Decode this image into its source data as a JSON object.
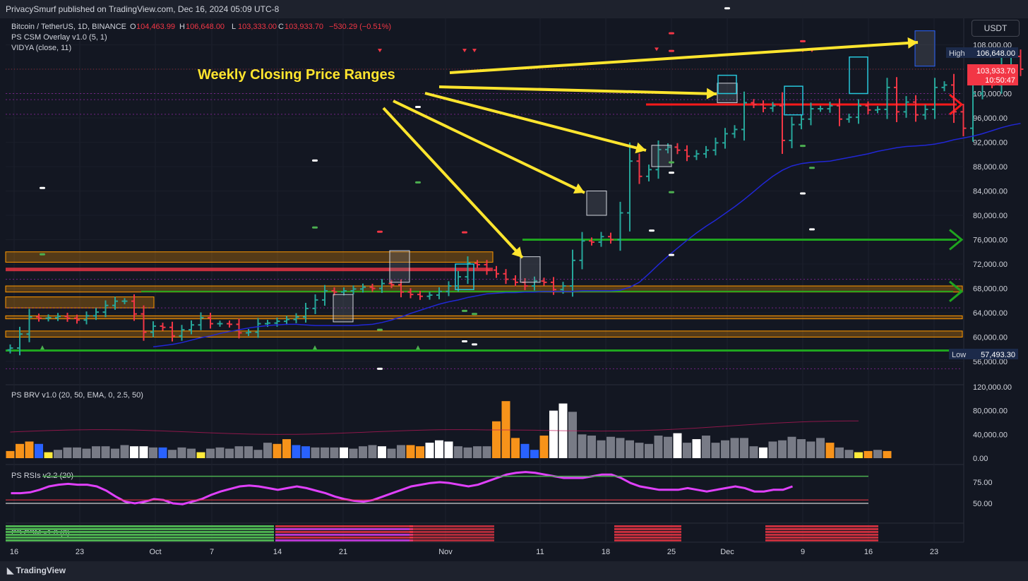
{
  "header": {
    "text": "PrivacySmurf published on TradingView.com, Dec 16, 2024 05:09 UTC-8"
  },
  "legend": {
    "symbol": "Bitcoin / TetherUS, 1D, BINANCE",
    "o_label": "O",
    "o": "104,463.99",
    "h_label": "H",
    "h": "106,648.00",
    "l_label": "L",
    "l": "103,333.00",
    "c_label": "C",
    "c": "103,933.70",
    "chg": "−530.29 (−0.51%)",
    "ind1": "PS CSM Overlay v1.0 (5, 1)",
    "ind2": "VIDYA (close, 11)"
  },
  "currency_button": "USDT",
  "annotation": "Weekly Closing Price Ranges",
  "tags": {
    "high_label": "High",
    "high_value": "106,648.00",
    "last_price": "103,933.70",
    "countdown": "10:50:47",
    "low_label": "Low",
    "low_value": "57,493.30"
  },
  "panes": {
    "brv": "PS BRV v1.0 (20, 50, EMA, 0, 2.5, 50)",
    "rsi": "PS RSIs v2.2 (20)",
    "csm": "PS CSM v1.0 (6)"
  },
  "footer": {
    "brand": "TradingView"
  },
  "colors": {
    "up": "#26a69a",
    "down": "#f23645",
    "vidya": "#2127d6",
    "rsi": "#e040fb",
    "annotation": "#ffe52e",
    "background": "#131722"
  },
  "chart_data": [
    {
      "type": "line",
      "title": "Bitcoin / TetherUS, 1D, BINANCE",
      "x_ticks": [
        "16",
        "23",
        "Oct",
        "7",
        "14",
        "21",
        "Nov",
        "11",
        "18",
        "25",
        "Dec",
        "9",
        "16",
        "23"
      ],
      "y_ticks": [
        "56,000.00",
        "60,000.00",
        "64,000.00",
        "68,000.00",
        "72,000.00",
        "76,000.00",
        "80,000.00",
        "84,000.00",
        "88,000.00",
        "92,000.00",
        "96,000.00",
        "100,000.00",
        "104,000.00",
        "108,000.00"
      ],
      "ylim": [
        54300,
        110400
      ],
      "series": [
        {
          "name": "VIDYA (close, 11)",
          "values": [
            58400,
            58600,
            58800,
            59100,
            59500,
            59900,
            60200,
            60600,
            60900,
            61200,
            61500,
            61700,
            61900,
            62000,
            62100,
            62100,
            62000,
            61900,
            61900,
            61900,
            61900,
            61900,
            62000,
            62100,
            62400,
            62800,
            63300,
            63900,
            64400,
            64900,
            65400,
            65800,
            66100,
            66500,
            66800,
            67100,
            67200,
            67300,
            67300,
            67400,
            67400,
            67500,
            67500,
            67500,
            67500,
            67600,
            67600,
            67600,
            67600,
            67700,
            68200,
            69000,
            70400,
            71900,
            73300,
            74600,
            75900,
            77100,
            78200,
            79200,
            80300,
            81400,
            82600,
            83900,
            85200,
            86400,
            87400,
            88100,
            88500,
            88700,
            88800,
            88900,
            89200,
            89500,
            89800,
            90100,
            90500,
            90800,
            91100,
            91300,
            91400,
            91500,
            91700,
            92000,
            92400,
            92700,
            93000,
            93400,
            93900,
            94400,
            94800,
            95100
          ]
        }
      ],
      "closes": [
        58200,
        60500,
        63300,
        63100,
        63200,
        63400,
        63100,
        62800,
        63500,
        64100,
        65200,
        65900,
        65900,
        63800,
        60800,
        61800,
        61600,
        60200,
        61200,
        62000,
        63200,
        62200,
        62200,
        62100,
        60700,
        60800,
        62200,
        62300,
        62600,
        62900,
        63300,
        64700,
        66100,
        67600,
        67400,
        67600,
        67900,
        68200,
        68000,
        68800,
        68600,
        67400,
        67000,
        66700,
        66900,
        67500,
        68400,
        69900,
        72100,
        71900,
        71000,
        70400,
        69500,
        69000,
        68400,
        69200,
        69000,
        67800,
        68400,
        72600,
        75800,
        75600,
        76500,
        76000,
        80400,
        88900,
        86400,
        87500,
        90800,
        91200,
        90700,
        89700,
        90100,
        90700,
        91900,
        93400,
        94100,
        98500,
        98200,
        97600,
        98000,
        92300,
        94900,
        95800,
        97500,
        97500,
        98000,
        95800,
        96100,
        98000,
        97300,
        97400,
        101000,
        97000,
        98600,
        96500,
        97400,
        101000,
        101400,
        97000,
        94300,
        100000,
        101500,
        101400,
        104500,
        106100,
        104000
      ],
      "annotation": "Weekly Closing Price Ranges"
    },
    {
      "type": "bar",
      "title": "PS BRV v1.0 (20, 50, EMA, 0, 2.5, 50)",
      "y_ticks": [
        "0.00",
        "40,000.00",
        "80,000.00",
        "120,000.00"
      ],
      "ylim": [
        0,
        120000
      ]
    },
    {
      "type": "line",
      "title": "PS RSIs v2.2 (20)",
      "y_ticks": [
        "50.00",
        "75.00"
      ]
    }
  ]
}
